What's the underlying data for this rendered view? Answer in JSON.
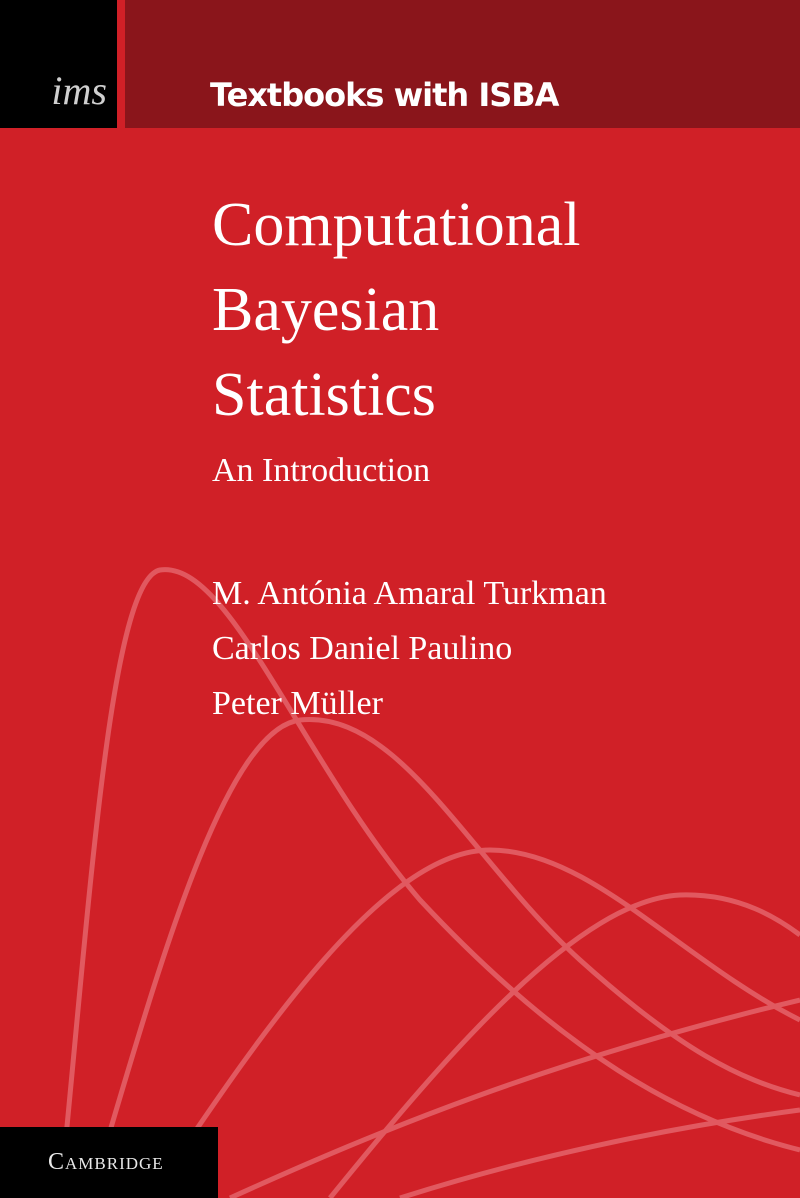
{
  "series": {
    "logo": "ims",
    "name": "Textbooks with ISBA"
  },
  "book": {
    "title_lines": [
      "Computational",
      "Bayesian",
      "Statistics"
    ],
    "subtitle": "An Introduction",
    "authors": [
      "M. Antónia Amaral Turkman",
      "Carlos Daniel Paulino",
      "Peter Müller"
    ]
  },
  "publisher": "Cambridge",
  "colors": {
    "background": "#d02027",
    "band": "#8a151b",
    "curves": "#e4636a",
    "text": "#ffffff"
  }
}
